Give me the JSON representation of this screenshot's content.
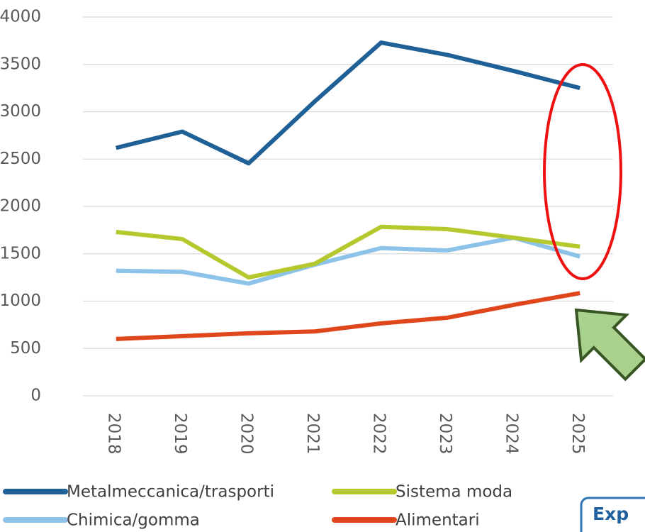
{
  "chart_data": {
    "type": "line",
    "categories": [
      "2018",
      "2019",
      "2020",
      "2021",
      "2022",
      "2023",
      "2024",
      "2025"
    ],
    "series": [
      {
        "name": "Metalmeccanica/trasporti",
        "color": "#1f6096",
        "values": [
          2618,
          2790,
          2455,
          3110,
          3730,
          3600,
          3430,
          3250
        ]
      },
      {
        "name": "Sistema moda",
        "color": "#b5c92f",
        "values": [
          1730,
          1655,
          1250,
          1395,
          1785,
          1760,
          1670,
          1575
        ]
      },
      {
        "name": "Chimica/gomma",
        "color": "#8dc3e8",
        "values": [
          1320,
          1310,
          1185,
          1385,
          1560,
          1535,
          1670,
          1470
        ]
      },
      {
        "name": "Alimentari",
        "color": "#e0461c",
        "values": [
          600,
          630,
          660,
          680,
          765,
          825,
          960,
          1085
        ]
      }
    ],
    "ylim": [
      0,
      4000
    ],
    "yticks": [
      0,
      500,
      1000,
      1500,
      2000,
      2500,
      3000,
      3500,
      4000
    ],
    "grid": true
  },
  "button": {
    "label": "Exp"
  }
}
